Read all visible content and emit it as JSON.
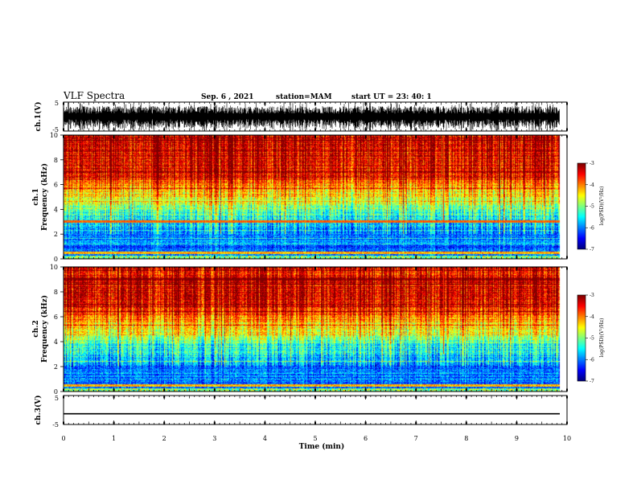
{
  "header": {
    "title": "VLF Spectra",
    "date": "Sep. 6 , 2021",
    "station": "station=MAM",
    "start": "start  UT =   23: 40: 1"
  },
  "chart_data": [
    {
      "type": "line",
      "id": "ch1-waveform",
      "ylabel": "ch.1(V)",
      "ylim": [
        -5,
        5
      ],
      "yticks": [
        "5",
        "-5"
      ]
    },
    {
      "type": "heatmap",
      "id": "ch1-spectrogram",
      "ylabel_top": "ch.1",
      "ylabel": "Frequency (kHz)",
      "ylim": [
        0,
        10
      ],
      "yticks": [
        "0",
        "2",
        "4",
        "6",
        "8",
        "10"
      ],
      "colorbar": {
        "label": "log(PSD)(V²/Hz)",
        "range": [
          -7,
          -3
        ],
        "ticks": [
          "-3",
          "-4",
          "-5",
          "-6",
          "-7"
        ]
      }
    },
    {
      "type": "heatmap",
      "id": "ch2-spectrogram",
      "ylabel_top": "ch.2",
      "ylabel": "Frequency (kHz)",
      "ylim": [
        0,
        10
      ],
      "yticks": [
        "0",
        "2",
        "4",
        "6",
        "8",
        "10"
      ],
      "colorbar": {
        "label": "log(PSD)(V²/Hz)",
        "range": [
          -7,
          -3
        ],
        "ticks": [
          "-3",
          "-4",
          "-5",
          "-6",
          "-7"
        ]
      }
    },
    {
      "type": "line",
      "id": "ch3-waveform",
      "ylabel": "ch.3(V)",
      "ylim": [
        -5,
        5
      ],
      "yticks": [
        "5",
        "-5"
      ],
      "value": -1.3
    }
  ],
  "xaxis": {
    "label": "Time (min)",
    "range": [
      0,
      10
    ],
    "ticks": [
      "0",
      "1",
      "2",
      "3",
      "4",
      "5",
      "6",
      "7",
      "8",
      "9",
      "10"
    ],
    "data_end": 9.85
  }
}
